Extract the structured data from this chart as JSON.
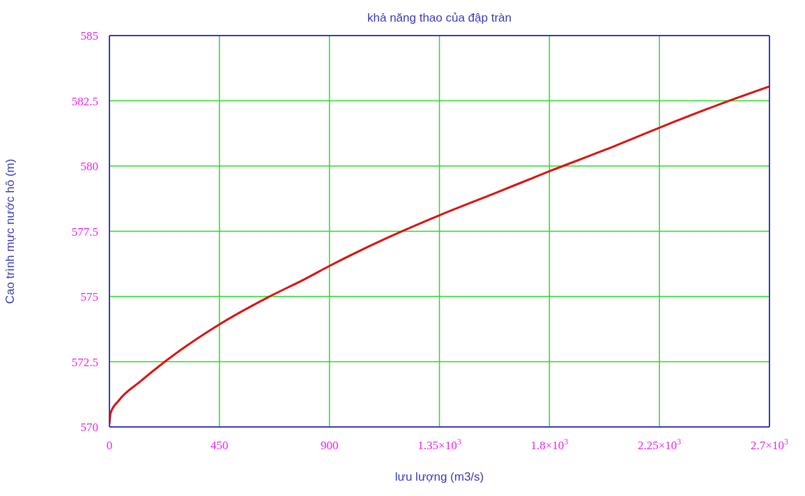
{
  "chart_data": {
    "type": "line",
    "title": "khả năng thao của đập tràn",
    "xlabel": "lưu lượng (m3/s)",
    "ylabel": "Cao trình mực nước hồ (m)",
    "x": [
      0,
      5,
      40,
      126,
      221,
      450,
      649,
      802,
      900,
      1126,
      1350,
      1583,
      1800,
      2030,
      2250,
      2526,
      2700
    ],
    "series": [
      {
        "color": "#dd1111",
        "values": [
          570.1,
          570.54,
          571.03,
          571.74,
          572.46,
          573.93,
          574.97,
          575.68,
          576.17,
          577.2,
          578.11,
          578.98,
          579.8,
          580.63,
          581.47,
          582.47,
          583.05
        ]
      }
    ],
    "xlim": [
      0,
      2700
    ],
    "xticks": [
      0,
      450,
      900,
      {
        "value": 1350,
        "label": "1.35×10$^{3}$"
      },
      {
        "value": 1800,
        "label": "1.8×10$^{3}$"
      },
      {
        "value": 2250,
        "label": "2.25×10$^{3}$"
      },
      {
        "value": 2700,
        "label": "2.7×10$^{3}$"
      }
    ],
    "ylim": [
      570,
      585
    ],
    "yticks": [
      570,
      572.5,
      575,
      577.5,
      580,
      582.5,
      585
    ],
    "grid": true
  }
}
